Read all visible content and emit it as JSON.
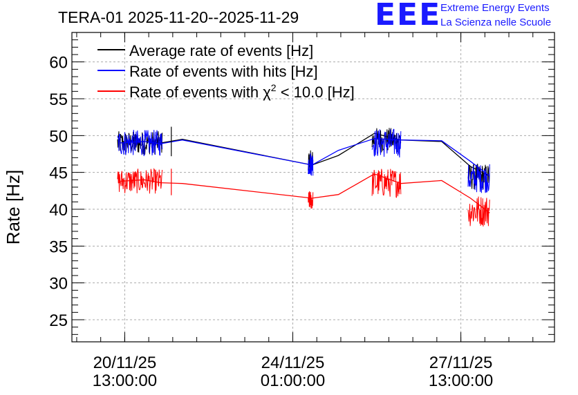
{
  "logo": {
    "mark": "EEE",
    "line1": "Extreme Energy Events",
    "line2": "La Scienza nelle Scuole",
    "color": "#1a1aff"
  },
  "chart_data": {
    "type": "line",
    "title": "TERA-01 2025-11-20--2025-11-29",
    "xlabel": "",
    "ylabel": "Rate [Hz]",
    "ylim": [
      22,
      64
    ],
    "xlim_days": [
      -1.1,
      8.95
    ],
    "x_unit": "days since 20/11/25 13:00:00",
    "y_ticks": [
      25,
      30,
      35,
      40,
      45,
      50,
      55,
      60
    ],
    "x_ticks": [
      {
        "x": 0,
        "line1": "20/11/25",
        "line2": "13:00:00"
      },
      {
        "x": 3.5,
        "line1": "24/11/25",
        "line2": "01:00:00"
      },
      {
        "x": 7.0,
        "line1": "27/11/25",
        "line2": "13:00:00"
      }
    ],
    "grid": true,
    "legend_position": "top-left",
    "series": [
      {
        "name": "Average rate of events [Hz]",
        "legend_prefix": "Average rate of events [Hz]",
        "legend_sup": "",
        "legend_suffix": "",
        "color": "#000000",
        "x": [
          -0.1,
          0.4,
          0.75,
          1.2,
          3.9,
          4.45,
          5.2,
          5.75,
          6.6,
          7.2,
          7.6
        ],
        "y": [
          49.0,
          49.2,
          49.0,
          49.5,
          46.0,
          47.3,
          50.3,
          49.4,
          49.2,
          45.8,
          44.5
        ],
        "noise_segments": [
          {
            "x0": -0.15,
            "x1": 0.78,
            "mean": 49.0,
            "amp": 1.6
          },
          {
            "x0": 3.82,
            "x1": 3.92,
            "mean": 46.5,
            "amp": 1.5
          },
          {
            "x0": 5.15,
            "x1": 5.75,
            "mean": 49.4,
            "amp": 1.7
          },
          {
            "x0": 7.15,
            "x1": 7.6,
            "mean": 44.4,
            "amp": 1.8
          }
        ]
      },
      {
        "name": "Rate of events with hits [Hz]",
        "legend_prefix": "Rate of events with hits [Hz]",
        "legend_sup": "",
        "legend_suffix": "",
        "color": "#0000ff",
        "x": [
          -0.1,
          0.4,
          0.75,
          1.2,
          3.9,
          4.45,
          5.2,
          5.75,
          6.6,
          7.2,
          7.6
        ],
        "y": [
          49.0,
          49.2,
          48.9,
          49.4,
          46.0,
          48.0,
          49.6,
          49.4,
          49.3,
          46.5,
          44.5
        ],
        "noise_segments": [
          {
            "x0": -0.15,
            "x1": 0.78,
            "mean": 49.0,
            "amp": 1.8
          },
          {
            "x0": 3.82,
            "x1": 3.92,
            "mean": 46.2,
            "amp": 1.7
          },
          {
            "x0": 5.15,
            "x1": 5.75,
            "mean": 49.0,
            "amp": 2.0
          },
          {
            "x0": 7.15,
            "x1": 7.6,
            "mean": 44.2,
            "amp": 2.0
          }
        ]
      },
      {
        "name": "Rate of events with chi^2 < 10.0 [Hz]",
        "legend_prefix": "Rate of events with ",
        "legend_symbol": "χ",
        "legend_sup": "2",
        "legend_suffix": " < 10.0 [Hz]",
        "color": "#ff0000",
        "x": [
          -0.1,
          0.4,
          0.75,
          1.2,
          3.9,
          4.45,
          5.2,
          5.75,
          6.6,
          7.2,
          7.6
        ],
        "y": [
          43.8,
          44.0,
          43.6,
          43.5,
          41.5,
          42.0,
          44.8,
          43.5,
          43.9,
          41.5,
          39.5
        ],
        "noise_segments": [
          {
            "x0": -0.15,
            "x1": 0.78,
            "mean": 43.8,
            "amp": 1.7
          },
          {
            "x0": 3.82,
            "x1": 3.92,
            "mean": 41.2,
            "amp": 1.3
          },
          {
            "x0": 5.15,
            "x1": 5.75,
            "mean": 43.6,
            "amp": 2.0
          },
          {
            "x0": 7.15,
            "x1": 7.6,
            "mean": 39.8,
            "amp": 2.2
          }
        ]
      }
    ]
  }
}
